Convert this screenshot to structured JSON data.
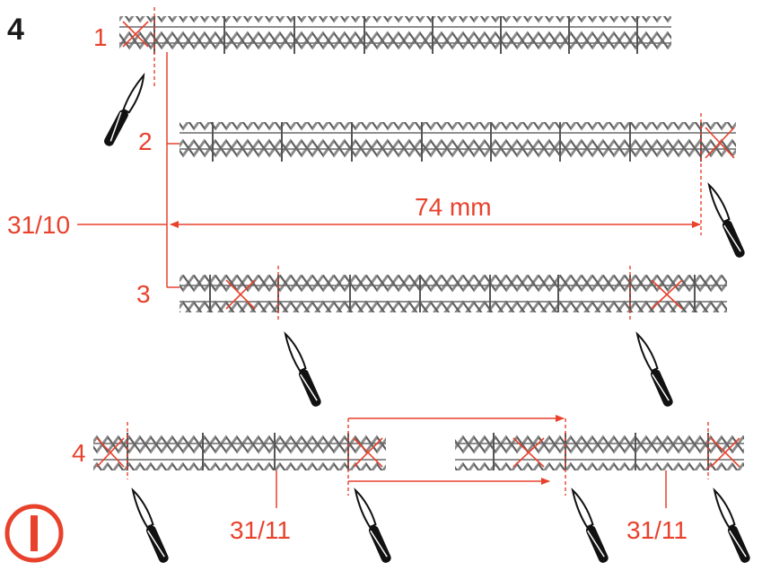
{
  "figure": {
    "step_number": "4",
    "caution_symbol": "info-circle-icon"
  },
  "rows": [
    {
      "label": "1"
    },
    {
      "label": "2"
    },
    {
      "label": "3"
    },
    {
      "label": "4"
    }
  ],
  "annotations": {
    "ref_31_10": "31/10",
    "length": "74 mm",
    "ref_31_11_left": "31/11",
    "ref_31_11_right": "31/11"
  },
  "colors": {
    "accent": "#e8412c",
    "strip": "#7a7a7a",
    "text": "#1a1a1a"
  }
}
